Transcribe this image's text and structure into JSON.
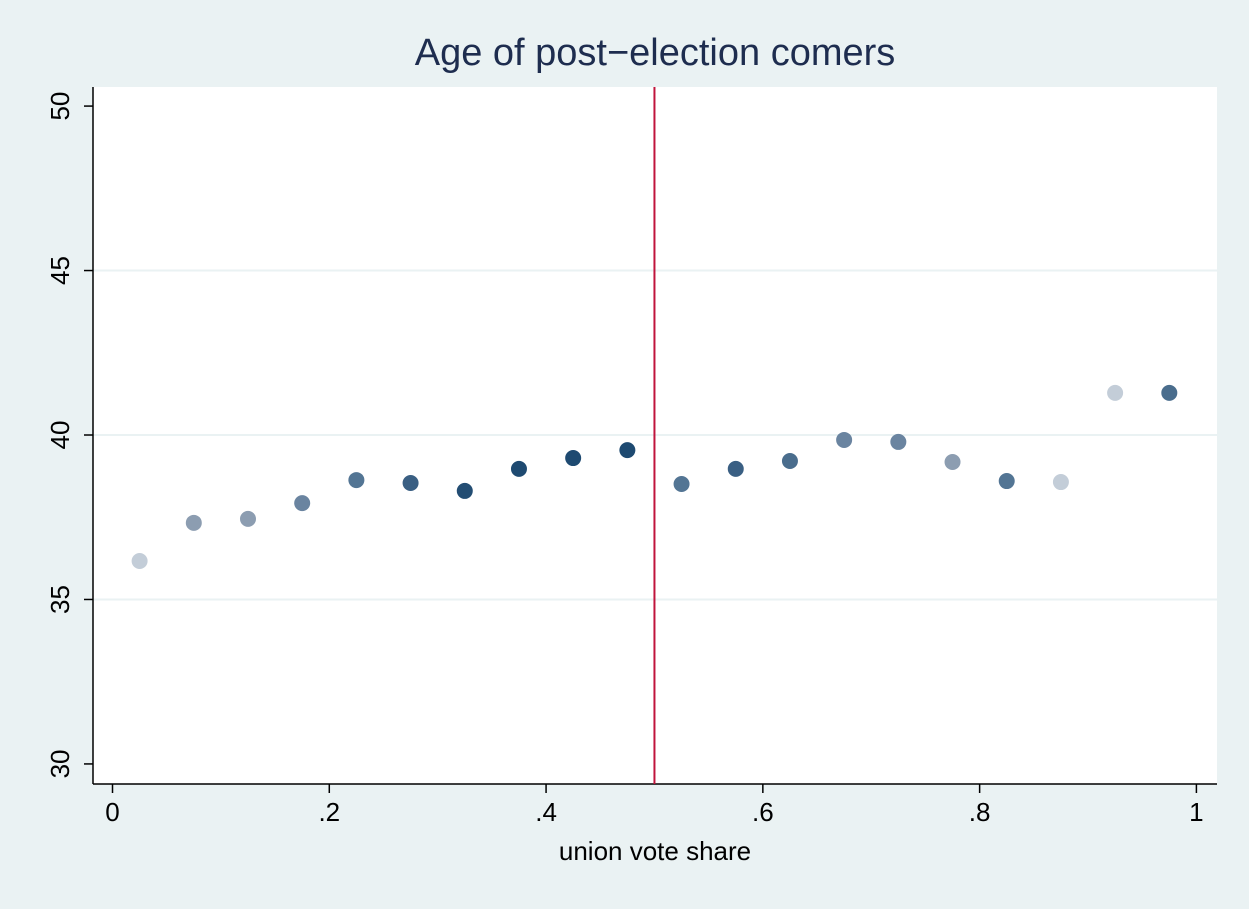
{
  "chart_data": {
    "type": "scatter",
    "title": "Age of post−election comers",
    "x_label": "union vote share",
    "x": [
      0.025,
      0.075,
      0.125,
      0.175,
      0.225,
      0.275,
      0.325,
      0.375,
      0.425,
      0.475,
      0.525,
      0.575,
      0.625,
      0.675,
      0.725,
      0.775,
      0.825,
      0.875,
      0.925,
      0.975
    ],
    "values": [
      36.17,
      37.33,
      37.45,
      37.93,
      38.63,
      38.54,
      38.3,
      38.97,
      39.3,
      39.54,
      38.51,
      38.97,
      39.21,
      39.85,
      39.79,
      39.18,
      38.6,
      38.57,
      41.28,
      41.28
    ],
    "colors": [
      "#c3cdd8",
      "#8c9db1",
      "#8c9db1",
      "#6a84a0",
      "#537594",
      "#3a5f83",
      "#234d73",
      "#1e4a71",
      "#1e4a71",
      "#1e4a71",
      "#537594",
      "#3a5f83",
      "#4a6d8d",
      "#6a84a0",
      "#6a84a0",
      "#8c9db1",
      "#537594",
      "#c3cdd8",
      "#c3cdd8",
      "#4a6d8d"
    ],
    "reference_line": {
      "x": 0.5,
      "color": "#c0143c"
    },
    "xlim": [
      -0.018,
      1.019
    ],
    "ylim": [
      29.39,
      50.58
    ],
    "xticks": [
      0,
      {
        "value": 0.2,
        "label": ".2"
      },
      {
        "value": 0.4,
        "label": ".4"
      },
      {
        "value": 0.6,
        "label": ".6"
      },
      {
        "value": 0.8,
        "label": ".8"
      },
      1
    ],
    "yticks": [
      30,
      35,
      40,
      45,
      50
    ],
    "grid": true
  }
}
